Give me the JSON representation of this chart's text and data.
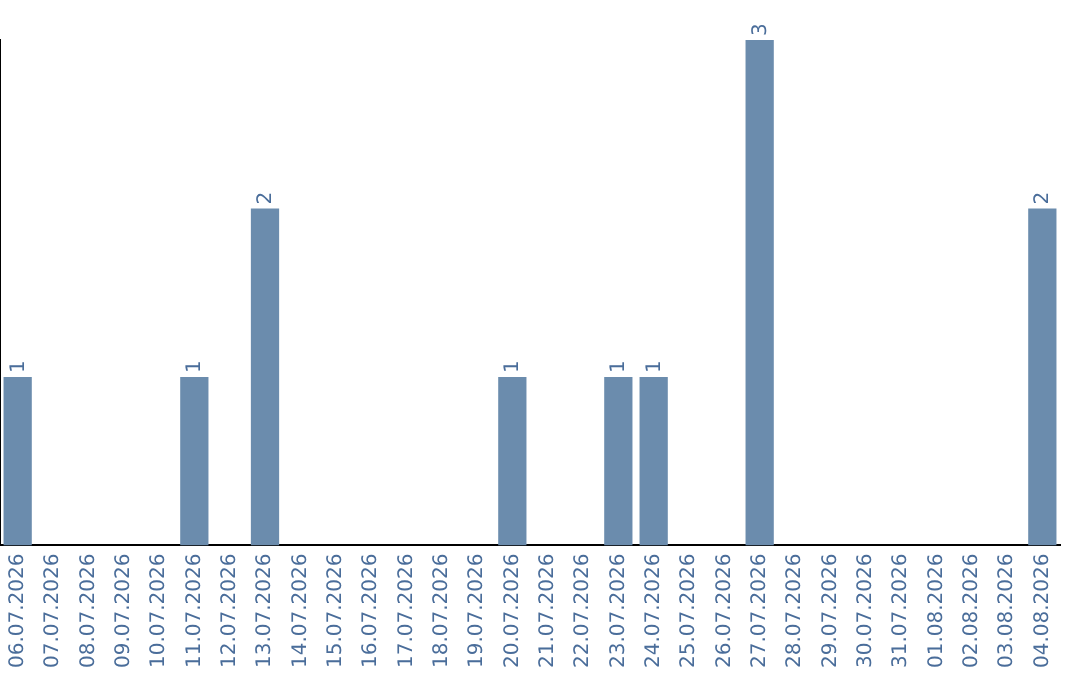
{
  "chart_data": {
    "type": "bar",
    "categories": [
      "06.07.2026",
      "07.07.2026",
      "08.07.2026",
      "09.07.2026",
      "10.07.2026",
      "11.07.2026",
      "12.07.2026",
      "13.07.2026",
      "14.07.2026",
      "15.07.2026",
      "16.07.2026",
      "17.07.2026",
      "18.07.2026",
      "19.07.2026",
      "20.07.2026",
      "21.07.2026",
      "22.07.2026",
      "23.07.2026",
      "24.07.2026",
      "25.07.2026",
      "26.07.2026",
      "27.07.2026",
      "28.07.2026",
      "29.07.2026",
      "30.07.2026",
      "31.07.2026",
      "01.08.2026",
      "02.08.2026",
      "03.08.2026",
      "04.08.2026"
    ],
    "values": [
      1,
      0,
      0,
      0,
      0,
      1,
      0,
      2,
      0,
      0,
      0,
      0,
      0,
      0,
      1,
      0,
      0,
      1,
      1,
      0,
      0,
      3,
      0,
      0,
      0,
      0,
      0,
      0,
      0,
      2
    ],
    "value_labels": [
      "1",
      null,
      null,
      null,
      null,
      "1",
      null,
      "2",
      null,
      null,
      null,
      null,
      null,
      null,
      "1",
      null,
      null,
      "1",
      "1",
      null,
      null,
      "3",
      null,
      null,
      null,
      null,
      null,
      null,
      null,
      "2"
    ],
    "color": "#6b8cad",
    "ylim": [
      0,
      3
    ],
    "tick_labels": "x",
    "grid": false,
    "legend": false
  }
}
